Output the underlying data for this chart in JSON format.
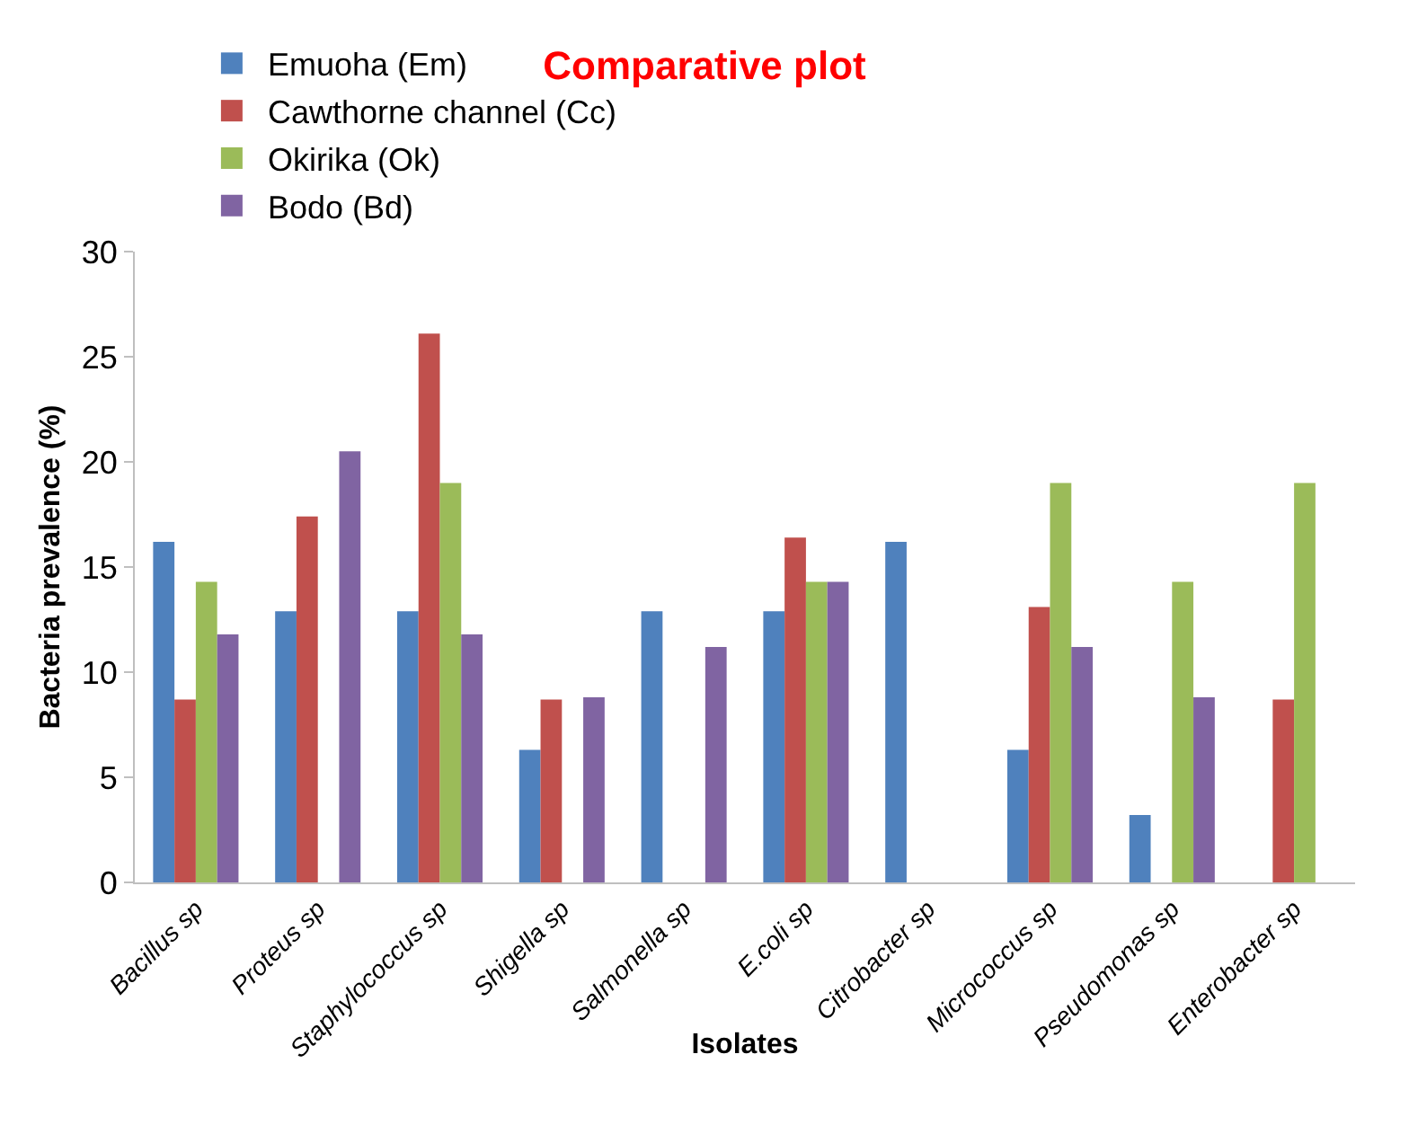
{
  "chart_data": {
    "type": "bar",
    "title": "Comparative plot",
    "xlabel": "Isolates",
    "ylabel": "Bacteria prevalence (%)",
    "categories": [
      "Bacillus sp",
      "Proteus sp",
      "Staphylococcus sp",
      "Shigella sp",
      "Salmonella sp",
      "E.coli sp",
      "Citrobacter sp",
      "Micrococcus sp",
      "Pseudomonas sp",
      "Enterobacter sp"
    ],
    "series": [
      {
        "name": "Emuoha (Em)",
        "color": "#4f81bd",
        "values": [
          16.2,
          12.9,
          12.9,
          6.3,
          12.9,
          12.9,
          16.2,
          6.3,
          3.2,
          0
        ]
      },
      {
        "name": "Cawthorne channel (Cc)",
        "color": "#c0504d",
        "values": [
          8.7,
          17.4,
          26.1,
          8.7,
          0,
          16.4,
          0,
          13.1,
          0,
          8.7
        ]
      },
      {
        "name": "Okirika (Ok)",
        "color": "#9bbb59",
        "values": [
          14.3,
          0,
          19.0,
          0,
          0,
          14.3,
          0,
          19.0,
          14.3,
          19.0
        ]
      },
      {
        "name": "Bodo (Bd)",
        "color": "#8064a2",
        "values": [
          11.8,
          20.5,
          11.8,
          8.8,
          11.2,
          14.3,
          0,
          11.2,
          8.8,
          0
        ]
      }
    ],
    "ylim": [
      0,
      30
    ],
    "yticks": [
      0,
      5,
      10,
      15,
      20,
      25,
      30
    ],
    "grid": false,
    "legend": "top"
  }
}
